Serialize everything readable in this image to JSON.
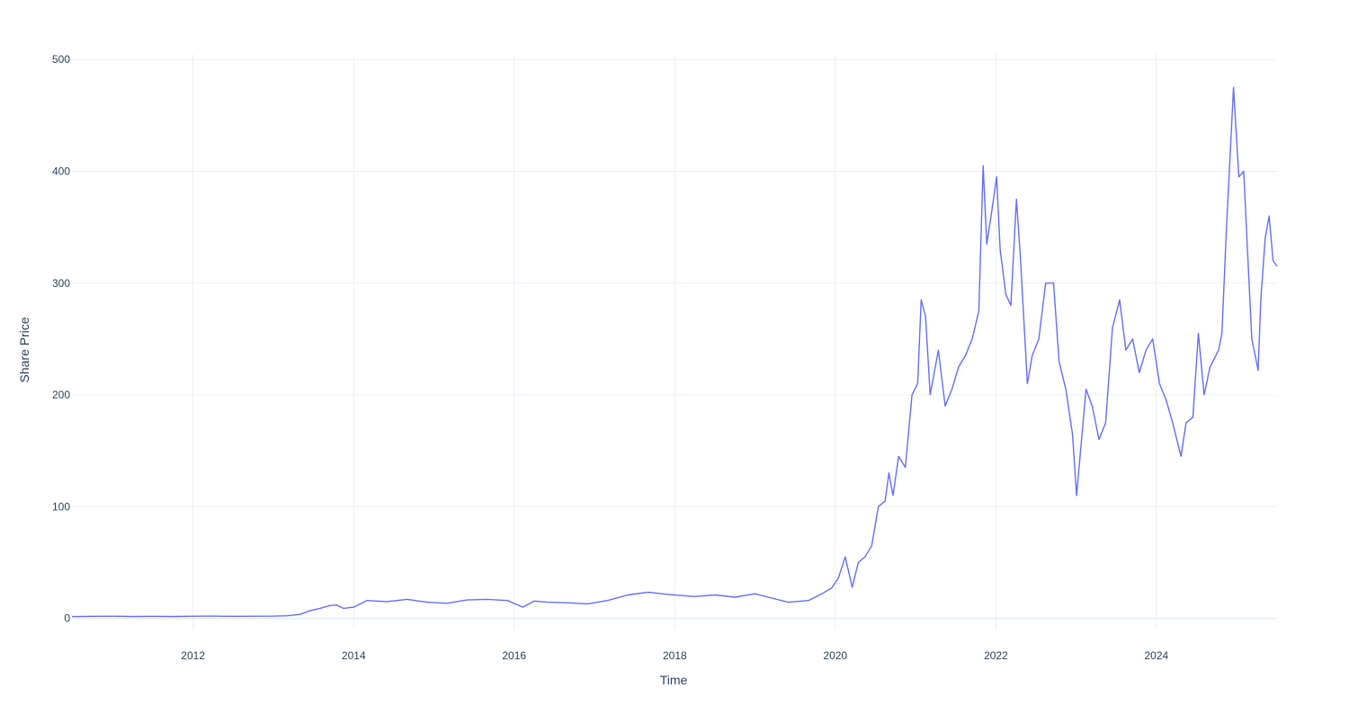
{
  "chart_data": {
    "type": "line",
    "title": "",
    "xlabel": "Time",
    "ylabel": "Share Price",
    "xlim": [
      "2010-06-29",
      "2025-07-03"
    ],
    "ylim": [
      -10,
      505
    ],
    "grid": true,
    "legend": "none",
    "line_color": "#636efa",
    "x_ticks": [
      {
        "date": "2012-01-01",
        "label": "2012"
      },
      {
        "date": "2014-01-01",
        "label": "2014"
      },
      {
        "date": "2016-01-01",
        "label": "2016"
      },
      {
        "date": "2018-01-01",
        "label": "2018"
      },
      {
        "date": "2020-01-01",
        "label": "2020"
      },
      {
        "date": "2022-01-01",
        "label": "2022"
      },
      {
        "date": "2024-01-01",
        "label": "2024"
      }
    ],
    "y_ticks": [
      {
        "value": 0,
        "label": "0"
      },
      {
        "value": 100,
        "label": "100"
      },
      {
        "value": 200,
        "label": "200"
      },
      {
        "value": 300,
        "label": "300"
      },
      {
        "value": 400,
        "label": "400"
      },
      {
        "value": 500,
        "label": "500"
      }
    ],
    "series": [
      {
        "x": [
          "2010-06-29",
          "2010-10-01",
          "2011-01-01",
          "2011-04-01",
          "2011-07-01",
          "2011-10-01",
          "2012-01-01",
          "2012-04-01",
          "2012-07-01",
          "2012-10-01",
          "2013-01-01",
          "2013-03-01",
          "2013-05-01",
          "2013-06-15",
          "2013-08-01",
          "2013-09-15",
          "2013-10-15",
          "2013-11-15",
          "2014-01-01",
          "2014-02-15",
          "2014-03-01",
          "2014-06-01",
          "2014-09-01",
          "2014-12-01",
          "2015-03-01",
          "2015-06-01",
          "2015-09-01",
          "2015-12-01",
          "2016-02-10",
          "2016-04-01",
          "2016-06-01",
          "2016-09-01",
          "2016-12-01",
          "2017-03-01",
          "2017-06-01",
          "2017-09-01",
          "2017-12-01",
          "2018-04-01",
          "2018-07-01",
          "2018-10-01",
          "2019-01-01",
          "2019-03-01",
          "2019-06-01",
          "2019-09-01",
          "2019-11-01",
          "2019-12-15",
          "2020-01-15",
          "2020-02-15",
          "2020-03-18",
          "2020-04-15",
          "2020-05-15",
          "2020-06-15",
          "2020-07-15",
          "2020-08-15",
          "2020-09-01",
          "2020-09-20",
          "2020-10-15",
          "2020-11-15",
          "2020-12-15",
          "2021-01-10",
          "2021-01-26",
          "2021-02-15",
          "2021-03-08",
          "2021-04-14",
          "2021-05-15",
          "2021-06-15",
          "2021-07-15",
          "2021-08-15",
          "2021-09-15",
          "2021-10-15",
          "2021-11-04",
          "2021-11-20",
          "2021-12-10",
          "2022-01-04",
          "2022-01-20",
          "2022-02-15",
          "2022-03-10",
          "2022-04-04",
          "2022-04-20",
          "2022-05-24",
          "2022-06-15",
          "2022-07-15",
          "2022-08-15",
          "2022-09-20",
          "2022-10-15",
          "2022-11-15",
          "2022-12-15",
          "2023-01-03",
          "2023-02-15",
          "2023-03-15",
          "2023-04-15",
          "2023-05-15",
          "2023-06-15",
          "2023-07-18",
          "2023-08-15",
          "2023-09-15",
          "2023-10-15",
          "2023-11-15",
          "2023-12-15",
          "2024-01-15",
          "2024-02-15",
          "2024-03-15",
          "2024-04-22",
          "2024-05-15",
          "2024-06-15",
          "2024-07-10",
          "2024-08-05",
          "2024-09-01",
          "2024-10-10",
          "2024-10-25",
          "2024-11-15",
          "2024-12-17",
          "2025-01-10",
          "2025-02-01",
          "2025-03-10",
          "2025-04-08",
          "2025-04-20",
          "2025-05-10",
          "2025-05-28",
          "2025-06-15",
          "2025-07-03"
        ],
        "y": [
          1.6,
          1.8,
          1.9,
          1.7,
          1.8,
          1.7,
          1.9,
          2.0,
          1.8,
          1.9,
          2.0,
          2.3,
          3.5,
          6.8,
          9.0,
          11.5,
          12.0,
          9.0,
          10.0,
          14.5,
          16.0,
          15.0,
          17.0,
          14.5,
          13.5,
          16.5,
          17.0,
          16.0,
          10.0,
          15.5,
          14.5,
          14.0,
          13.0,
          16.0,
          21.0,
          23.5,
          21.5,
          19.5,
          21.0,
          19.0,
          22.0,
          19.0,
          14.5,
          16.0,
          22.0,
          27.0,
          36.0,
          55.0,
          28.0,
          50.0,
          55.0,
          65.0,
          100.0,
          105.0,
          130.0,
          110.0,
          145.0,
          135.0,
          200.0,
          210.0,
          285.0,
          270.0,
          200.0,
          240.0,
          190.0,
          205.0,
          225.0,
          235.0,
          250.0,
          275.0,
          405.0,
          335.0,
          360.0,
          395.0,
          330.0,
          290.0,
          280.0,
          375.0,
          330.0,
          210.0,
          235.0,
          250.0,
          300.0,
          300.0,
          230.0,
          205.0,
          165.0,
          110.0,
          205.0,
          190.0,
          160.0,
          175.0,
          260.0,
          285.0,
          240.0,
          250.0,
          220.0,
          240.0,
          250.0,
          210.0,
          195.0,
          175.0,
          145.0,
          175.0,
          180.0,
          255.0,
          200.0,
          225.0,
          240.0,
          255.0,
          350.0,
          475.0,
          395.0,
          400.0,
          250.0,
          222.0,
          285.0,
          340.0,
          360.0,
          320.0,
          315.0
        ]
      }
    ]
  }
}
